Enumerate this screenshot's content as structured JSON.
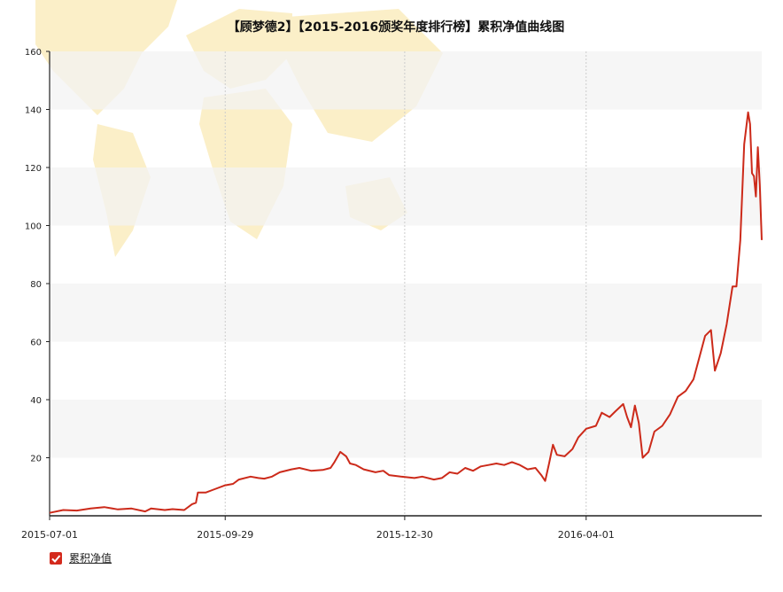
{
  "chart_data": {
    "type": "line",
    "title": "【顾梦德2】【2015-2016颁奖年度排行榜】累积净值曲线图",
    "x_ticks": [
      "2015-07-01",
      "2015-09-29",
      "2015-12-30",
      "2016-04-01"
    ],
    "y_ticks": [
      20,
      40,
      60,
      80,
      100,
      120,
      140,
      160
    ],
    "ylim": [
      0,
      160
    ],
    "xlim": [
      "2015-07-01",
      "2016-06-30"
    ],
    "grid": "vertical dashed lines at x ticks, alternating horizontal bands",
    "legend_position": "bottom-left",
    "series": [
      {
        "name": "累积净值",
        "color": "#cc2a1a",
        "points": [
          [
            "2015-07-01",
            1.0
          ],
          [
            "2015-07-08",
            2.0
          ],
          [
            "2015-07-15",
            1.8
          ],
          [
            "2015-07-22",
            2.5
          ],
          [
            "2015-07-29",
            3.0
          ],
          [
            "2015-08-05",
            2.2
          ],
          [
            "2015-08-12",
            2.5
          ],
          [
            "2015-08-19",
            1.5
          ],
          [
            "2015-08-22",
            2.5
          ],
          [
            "2015-08-29",
            2.0
          ],
          [
            "2015-09-02",
            2.3
          ],
          [
            "2015-09-08",
            2.0
          ],
          [
            "2015-09-12",
            4.0
          ],
          [
            "2015-09-14",
            4.5
          ],
          [
            "2015-09-15",
            8.0
          ],
          [
            "2015-09-19",
            8.0
          ],
          [
            "2015-09-23",
            9.0
          ],
          [
            "2015-09-29",
            10.5
          ],
          [
            "2015-10-03",
            11.0
          ],
          [
            "2015-10-06",
            12.5
          ],
          [
            "2015-10-12",
            13.5
          ],
          [
            "2015-10-16",
            13.0
          ],
          [
            "2015-10-19",
            12.8
          ],
          [
            "2015-10-23",
            13.5
          ],
          [
            "2015-10-27",
            15.0
          ],
          [
            "2015-11-02",
            16.0
          ],
          [
            "2015-11-06",
            16.5
          ],
          [
            "2015-11-12",
            15.5
          ],
          [
            "2015-11-18",
            15.8
          ],
          [
            "2015-11-22",
            16.5
          ],
          [
            "2015-11-24",
            18.5
          ],
          [
            "2015-11-27",
            22.0
          ],
          [
            "2015-11-30",
            20.5
          ],
          [
            "2015-12-02",
            18.0
          ],
          [
            "2015-12-05",
            17.5
          ],
          [
            "2015-12-09",
            16.0
          ],
          [
            "2015-12-15",
            15.0
          ],
          [
            "2015-12-19",
            15.5
          ],
          [
            "2015-12-22",
            14.0
          ],
          [
            "2015-12-28",
            13.5
          ],
          [
            "2016-01-04",
            13.0
          ],
          [
            "2016-01-08",
            13.5
          ],
          [
            "2016-01-14",
            12.5
          ],
          [
            "2016-01-18",
            13.0
          ],
          [
            "2016-01-22",
            15.0
          ],
          [
            "2016-01-26",
            14.5
          ],
          [
            "2016-01-30",
            16.5
          ],
          [
            "2016-02-03",
            15.5
          ],
          [
            "2016-02-07",
            17.0
          ],
          [
            "2016-02-11",
            17.5
          ],
          [
            "2016-02-15",
            18.0
          ],
          [
            "2016-02-19",
            17.5
          ],
          [
            "2016-02-23",
            18.5
          ],
          [
            "2016-02-27",
            17.5
          ],
          [
            "2016-03-02",
            16.0
          ],
          [
            "2016-03-06",
            16.5
          ],
          [
            "2016-03-09",
            14.0
          ],
          [
            "2016-03-11",
            12.0
          ],
          [
            "2016-03-13",
            18.0
          ],
          [
            "2016-03-15",
            24.5
          ],
          [
            "2016-03-17",
            21.0
          ],
          [
            "2016-03-21",
            20.5
          ],
          [
            "2016-03-25",
            23.0
          ],
          [
            "2016-03-28",
            27.0
          ],
          [
            "2016-04-01",
            30.0
          ],
          [
            "2016-04-06",
            31.0
          ],
          [
            "2016-04-09",
            35.5
          ],
          [
            "2016-04-13",
            34.0
          ],
          [
            "2016-04-16",
            36.0
          ],
          [
            "2016-04-20",
            38.5
          ],
          [
            "2016-04-22",
            34.0
          ],
          [
            "2016-04-24",
            30.5
          ],
          [
            "2016-04-26",
            38.0
          ],
          [
            "2016-04-28",
            32.0
          ],
          [
            "2016-04-30",
            20.0
          ],
          [
            "2016-05-03",
            22.0
          ],
          [
            "2016-05-06",
            29.0
          ],
          [
            "2016-05-10",
            31.0
          ],
          [
            "2016-05-14",
            35.0
          ],
          [
            "2016-05-18",
            41.0
          ],
          [
            "2016-05-22",
            43.0
          ],
          [
            "2016-05-26",
            47.0
          ],
          [
            "2016-05-28",
            52.0
          ],
          [
            "2016-06-01",
            62.0
          ],
          [
            "2016-06-04",
            64.0
          ],
          [
            "2016-06-06",
            50.0
          ],
          [
            "2016-06-09",
            56.0
          ],
          [
            "2016-06-12",
            66.0
          ],
          [
            "2016-06-15",
            79.0
          ],
          [
            "2016-06-17",
            79.0
          ],
          [
            "2016-06-19",
            95.0
          ],
          [
            "2016-06-21",
            128.0
          ],
          [
            "2016-06-23",
            139.0
          ],
          [
            "2016-06-24",
            135.0
          ],
          [
            "2016-06-25",
            118.0
          ],
          [
            "2016-06-26",
            117.0
          ],
          [
            "2016-06-27",
            110.0
          ],
          [
            "2016-06-28",
            127.0
          ],
          [
            "2016-06-29",
            114.0
          ],
          [
            "2016-06-30",
            95.0
          ]
        ]
      }
    ]
  }
}
